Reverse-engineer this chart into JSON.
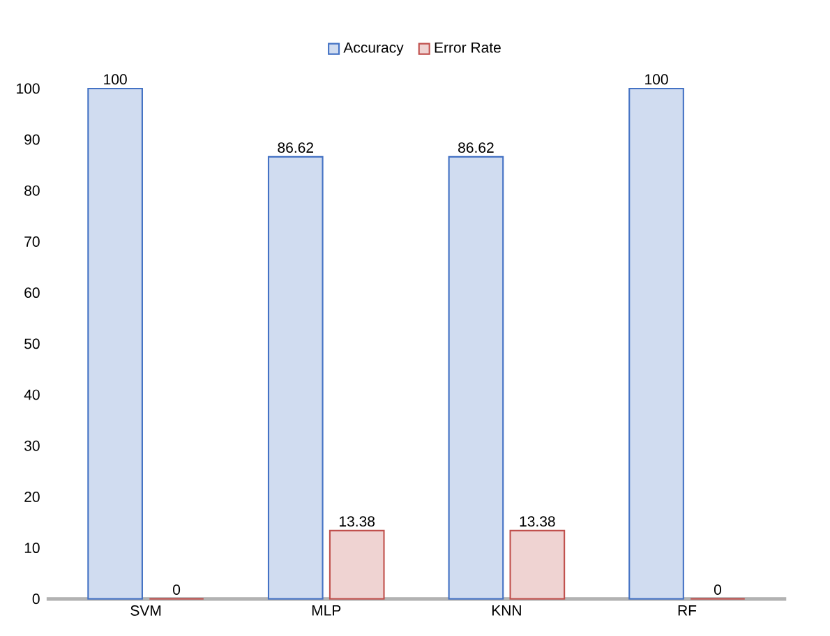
{
  "chart_data": {
    "type": "bar",
    "categories": [
      "SVM",
      "MLP",
      "KNN",
      "RF"
    ],
    "series": [
      {
        "name": "Accuracy",
        "color": "#4472c4",
        "values": [
          100,
          86.62,
          86.62,
          100
        ]
      },
      {
        "name": "Error Rate",
        "color": "#c0504d",
        "values": [
          0,
          13.38,
          13.38,
          0
        ]
      }
    ],
    "ylim": [
      0,
      100
    ],
    "yticks": [
      0,
      10,
      20,
      30,
      40,
      50,
      60,
      70,
      80,
      90,
      100
    ],
    "data_labels": true,
    "grid": false,
    "legend": "top"
  }
}
